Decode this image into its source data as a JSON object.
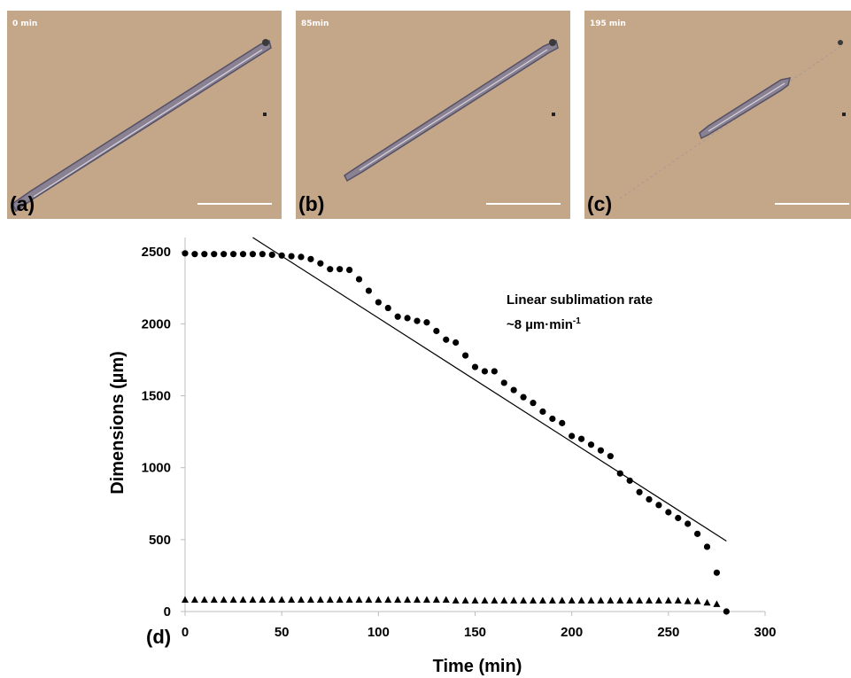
{
  "panels": [
    {
      "letter": "(a)",
      "time_label": "0 min"
    },
    {
      "letter": "(b)",
      "time_label": "85min"
    },
    {
      "letter": "(c)",
      "time_label": "195 min"
    }
  ],
  "colors": {
    "micrograph_background": "#c4a689",
    "crystal": "#7d7487",
    "marker": "#000000"
  },
  "chart_data": {
    "type": "scatter",
    "panel_label": "(d)",
    "xlabel": "Time (min)",
    "ylabel": "Dimensions (µm)",
    "xlim": [
      0,
      300
    ],
    "ylim": [
      0,
      2600
    ],
    "xticks": [
      0,
      50,
      100,
      150,
      200,
      250,
      300
    ],
    "yticks": [
      0,
      500,
      1000,
      1500,
      2000,
      2500
    ],
    "grid": false,
    "annotation": {
      "line1": "Linear sublimation rate",
      "line2_prefix": "~8 µm·min",
      "line2_superscript": "-1"
    },
    "trendline": {
      "x": [
        35,
        280
      ],
      "y": [
        2600,
        490
      ]
    },
    "series": [
      {
        "marker": "circle",
        "x": [
          0,
          5,
          10,
          15,
          20,
          25,
          30,
          35,
          40,
          45,
          50,
          55,
          60,
          65,
          70,
          75,
          80,
          85,
          90,
          95,
          100,
          105,
          110,
          115,
          120,
          125,
          130,
          135,
          140,
          145,
          150,
          155,
          160,
          165,
          170,
          175,
          180,
          185,
          190,
          195,
          200,
          205,
          210,
          215,
          220,
          225,
          230,
          235,
          240,
          245,
          250,
          255,
          260,
          265,
          270,
          275,
          280
        ],
        "y": [
          2490,
          2485,
          2485,
          2485,
          2485,
          2485,
          2485,
          2485,
          2485,
          2480,
          2475,
          2470,
          2465,
          2450,
          2420,
          2380,
          2380,
          2375,
          2310,
          2230,
          2150,
          2110,
          2050,
          2040,
          2020,
          2010,
          1950,
          1890,
          1870,
          1780,
          1700,
          1670,
          1670,
          1590,
          1540,
          1490,
          1450,
          1390,
          1340,
          1310,
          1220,
          1200,
          1160,
          1120,
          1080,
          960,
          910,
          830,
          780,
          740,
          690,
          650,
          610,
          540,
          450,
          270,
          0
        ]
      },
      {
        "marker": "triangle",
        "x": [
          0,
          5,
          10,
          15,
          20,
          25,
          30,
          35,
          40,
          45,
          50,
          55,
          60,
          65,
          70,
          75,
          80,
          85,
          90,
          95,
          100,
          105,
          110,
          115,
          120,
          125,
          130,
          135,
          140,
          145,
          150,
          155,
          160,
          165,
          170,
          175,
          180,
          185,
          190,
          195,
          200,
          205,
          210,
          215,
          220,
          225,
          230,
          235,
          240,
          245,
          250,
          255,
          260,
          265,
          270,
          275
        ],
        "y": [
          80,
          80,
          80,
          80,
          80,
          80,
          80,
          80,
          80,
          80,
          80,
          80,
          80,
          80,
          80,
          80,
          80,
          80,
          80,
          80,
          80,
          80,
          80,
          80,
          80,
          80,
          80,
          80,
          75,
          75,
          75,
          75,
          75,
          75,
          75,
          75,
          75,
          75,
          75,
          75,
          75,
          75,
          75,
          75,
          75,
          75,
          75,
          75,
          75,
          75,
          75,
          75,
          70,
          70,
          60,
          50
        ]
      }
    ]
  }
}
